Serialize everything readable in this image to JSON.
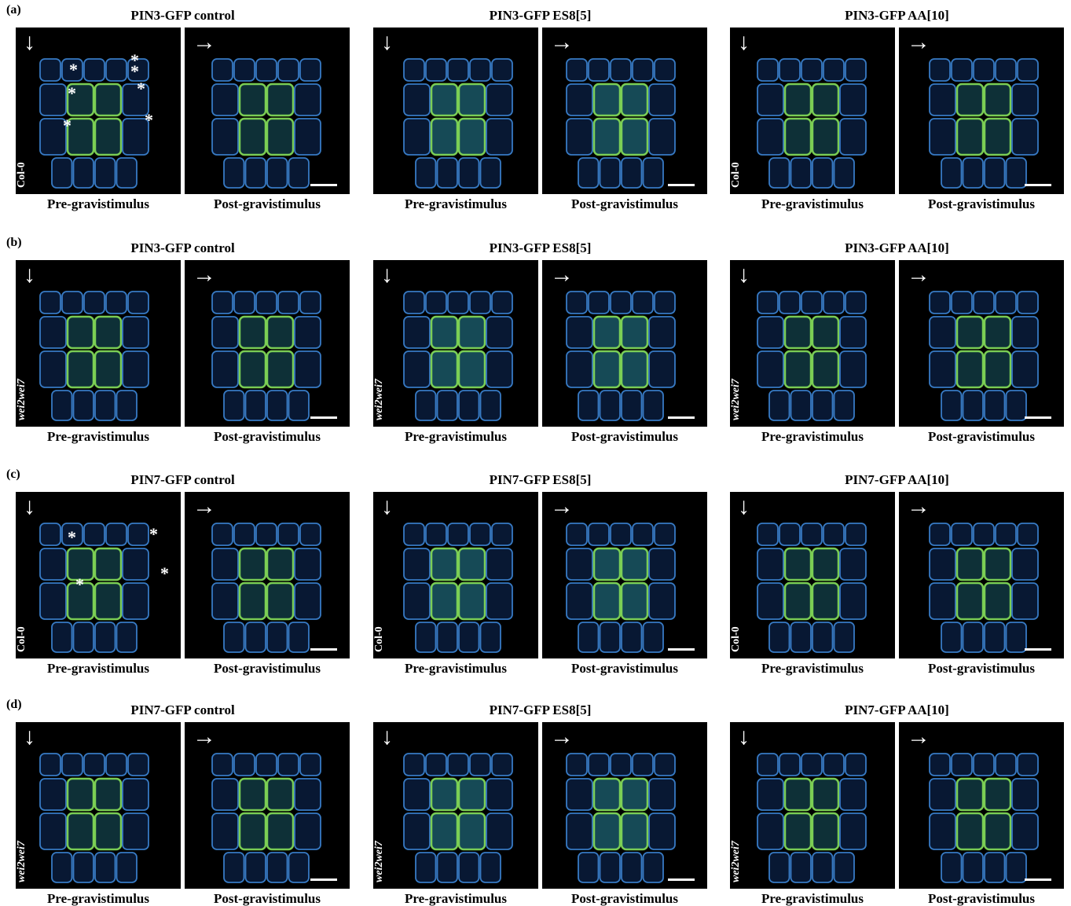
{
  "rows": [
    {
      "label": "(a)",
      "groups": [
        {
          "title": "PIN3-GFP control",
          "panels": [
            {
              "arrow": "↓",
              "genotype": "Col-0",
              "caption": "Pre-gravistimulus",
              "asterisks": [
                "*",
                "*",
                "*",
                "*",
                "*",
                "*",
                "*"
              ]
            },
            {
              "arrow": "→",
              "caption": "Post-gravistimulus"
            }
          ]
        },
        {
          "title": "PIN3-GFP ES8[5]",
          "panels": [
            {
              "arrow": "↓",
              "caption": "Pre-gravistimulus"
            },
            {
              "arrow": "→",
              "caption": "Post-gravistimulus"
            }
          ]
        },
        {
          "title": "PIN3-GFP AA[10]",
          "panels": [
            {
              "arrow": "↓",
              "genotype": "Col-0",
              "caption": "Pre-gravistimulus"
            },
            {
              "arrow": "→",
              "caption": "Post-gravistimulus"
            }
          ]
        }
      ]
    },
    {
      "label": "(b)",
      "groups": [
        {
          "title": "PIN3-GFP control",
          "panels": [
            {
              "arrow": "↓",
              "genotype": "wei2wei7",
              "caption": "Pre-gravistimulus"
            },
            {
              "arrow": "→",
              "caption": "Post-gravistimulus"
            }
          ]
        },
        {
          "title": "PIN3-GFP ES8[5]",
          "panels": [
            {
              "arrow": "↓",
              "genotype": "wei2wei7",
              "caption": "Pre-gravistimulus"
            },
            {
              "arrow": "→",
              "caption": "Post-gravistimulus"
            }
          ]
        },
        {
          "title": "PIN3-GFP AA[10]",
          "panels": [
            {
              "arrow": "↓",
              "genotype": "wei2wei7",
              "caption": "Pre-gravistimulus"
            },
            {
              "arrow": "→",
              "caption": "Post-gravistimulus"
            }
          ]
        }
      ]
    },
    {
      "label": "(c)",
      "groups": [
        {
          "title": "PIN7-GFP control",
          "panels": [
            {
              "arrow": "↓",
              "genotype": "Col-0",
              "caption": "Pre-gravistimulus",
              "asterisks": [
                "*",
                "*",
                "*",
                "*"
              ]
            },
            {
              "arrow": "→",
              "caption": "Post-gravistimulus"
            }
          ]
        },
        {
          "title": "PIN7-GFP ES8[5]",
          "panels": [
            {
              "arrow": "↓",
              "genotype": "Col-0",
              "caption": "Pre-gravistimulus"
            },
            {
              "arrow": "→",
              "caption": "Post-gravistimulus"
            }
          ]
        },
        {
          "title": "PIN7-GFP AA[10]",
          "panels": [
            {
              "arrow": "↓",
              "genotype": "Col-0",
              "caption": "Pre-gravistimulus"
            },
            {
              "arrow": "→",
              "caption": "Post-gravistimulus"
            }
          ]
        }
      ]
    },
    {
      "label": "(d)",
      "groups": [
        {
          "title": "PIN7-GFP control",
          "panels": [
            {
              "arrow": "↓",
              "genotype": "wei2wei7",
              "caption": "Pre-gravistimulus"
            },
            {
              "arrow": "→",
              "caption": "Post-gravistimulus"
            }
          ]
        },
        {
          "title": "PIN7-GFP ES8[5]",
          "panels": [
            {
              "arrow": "↓",
              "genotype": "wei2wei7",
              "caption": "Pre-gravistimulus"
            },
            {
              "arrow": "→",
              "caption": "Post-gravistimulus"
            }
          ]
        },
        {
          "title": "PIN7-GFP AA[10]",
          "panels": [
            {
              "arrow": "↓",
              "genotype": "wei2wei7",
              "caption": "Pre-gravistimulus"
            },
            {
              "arrow": "→",
              "caption": "Post-gravistimulus"
            }
          ]
        }
      ]
    }
  ]
}
